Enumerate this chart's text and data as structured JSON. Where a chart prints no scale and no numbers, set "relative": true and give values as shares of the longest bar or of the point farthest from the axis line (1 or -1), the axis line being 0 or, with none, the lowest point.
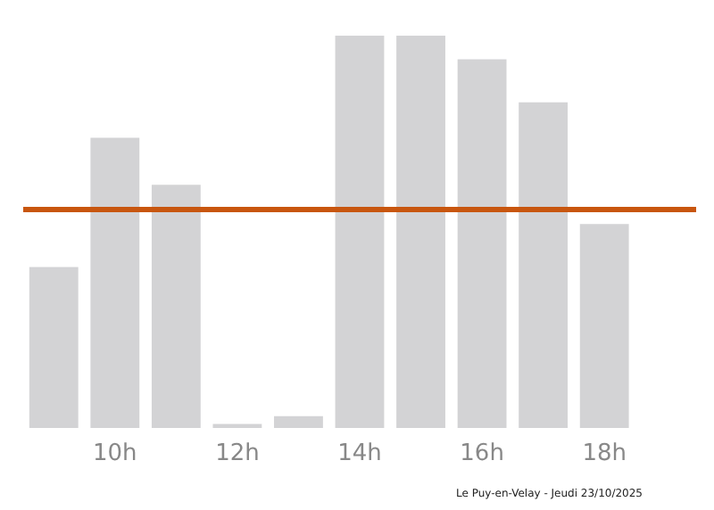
{
  "chart_data": {
    "type": "bar",
    "relative": true,
    "color": "#d3d3d5",
    "categories": [
      null,
      "10h",
      null,
      "12h",
      null,
      "14h",
      null,
      "16h",
      null,
      "18h",
      null
    ],
    "values": [
      0.41,
      0.74,
      0.62,
      0.01,
      0.03,
      1.0,
      1.0,
      0.94,
      0.83,
      0.52,
      0
    ],
    "ref_lines": [
      {
        "axis": "y",
        "value": 0.56,
        "color": "#c8560f"
      }
    ],
    "grid": false,
    "annotations": [
      "Le Puy-en-Velay - Jeudi 23/10/2025"
    ]
  }
}
